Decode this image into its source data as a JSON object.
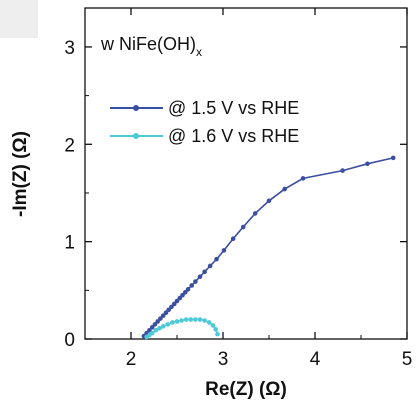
{
  "chart_data": {
    "type": "scatter",
    "annotation": {
      "main": "w NiFe(OH)",
      "subscript": "x"
    },
    "xlabel": "Re(Z) (Ω)",
    "ylabel": "-Im(Z) (Ω)",
    "xlim": [
      1.5,
      5.0
    ],
    "ylim": [
      0,
      3.4
    ],
    "xticks": [
      2,
      3,
      4,
      5
    ],
    "yticks": [
      0,
      1,
      2,
      3
    ],
    "grid": false,
    "legend_position": "upper-left",
    "series": [
      {
        "name": "@ 1.5 V vs RHE",
        "color": "#3b4fa0",
        "marker": "circle",
        "x": [
          2.14,
          2.17,
          2.2,
          2.23,
          2.26,
          2.29,
          2.32,
          2.35,
          2.38,
          2.41,
          2.44,
          2.47,
          2.5,
          2.53,
          2.56,
          2.59,
          2.62,
          2.66,
          2.7,
          2.75,
          2.8,
          2.86,
          2.93,
          3.01,
          3.11,
          3.22,
          3.35,
          3.5,
          3.67,
          3.87,
          4.3,
          4.57,
          4.85
        ],
        "y": [
          0.03,
          0.06,
          0.09,
          0.12,
          0.15,
          0.18,
          0.21,
          0.24,
          0.27,
          0.3,
          0.33,
          0.36,
          0.39,
          0.42,
          0.45,
          0.48,
          0.51,
          0.55,
          0.59,
          0.64,
          0.69,
          0.75,
          0.82,
          0.91,
          1.03,
          1.15,
          1.29,
          1.42,
          1.54,
          1.65,
          1.73,
          1.8,
          1.86
        ]
      },
      {
        "name": "@ 1.6 V vs RHE",
        "color": "#4ec9d8",
        "marker": "circle",
        "x": [
          2.17,
          2.2,
          2.23,
          2.27,
          2.31,
          2.35,
          2.4,
          2.45,
          2.5,
          2.55,
          2.6,
          2.65,
          2.7,
          2.75,
          2.8,
          2.85,
          2.89,
          2.92,
          2.94
        ],
        "y": [
          0.02,
          0.04,
          0.06,
          0.09,
          0.11,
          0.13,
          0.15,
          0.17,
          0.18,
          0.19,
          0.2,
          0.2,
          0.2,
          0.2,
          0.19,
          0.17,
          0.14,
          0.1,
          0.05
        ]
      }
    ]
  }
}
